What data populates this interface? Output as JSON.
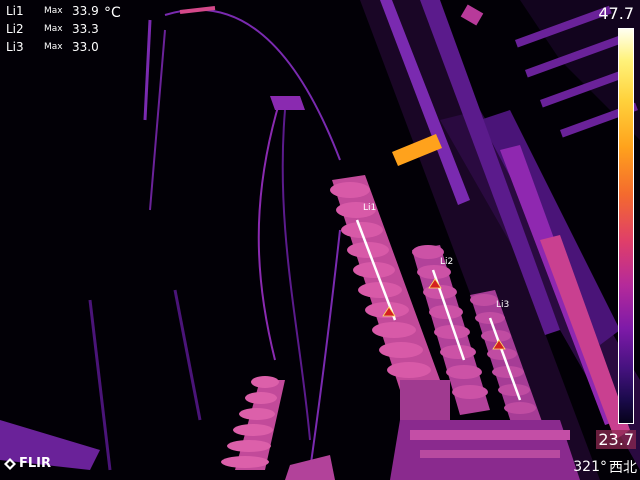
{
  "measurements": [
    {
      "label": "Li1",
      "kind": "Max",
      "value": "33.9"
    },
    {
      "label": "Li2",
      "kind": "Max",
      "value": "33.3"
    },
    {
      "label": "Li3",
      "kind": "Max",
      "value": "33.0"
    }
  ],
  "unit": "°C",
  "scale": {
    "max": "47.7",
    "min": "23.7",
    "palette": "iron"
  },
  "brand": {
    "name": "FLIR"
  },
  "compass": {
    "heading": "321°",
    "direction": "西北"
  },
  "line_tools": [
    {
      "label": "Li1"
    },
    {
      "label": "Li2"
    },
    {
      "label": "Li3"
    }
  ],
  "colors": {
    "hot": "#ffd23c",
    "warm": "#f46a2e",
    "mid": "#b52a9a",
    "cool": "#461280",
    "marker": "#d42020"
  }
}
